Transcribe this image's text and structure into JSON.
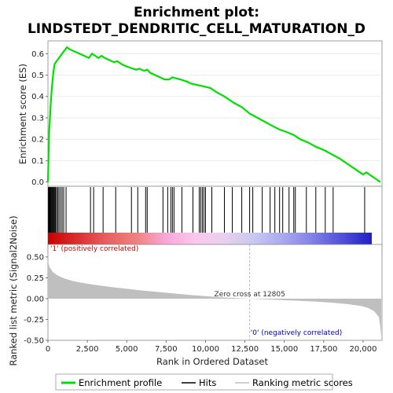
{
  "title_line1": "Enrichment plot:",
  "title_line2": "LINDSTEDT_DENDRITIC_CELL_MATURATION_D",
  "es_ylabel": "Enrichment score (ES)",
  "metric_ylabel": "Ranked list metric (Signal2Noise)",
  "xlabel": "Rank in Ordered Dataset",
  "zero_cross_text": "Zero cross at 12805",
  "pos_label": "'1' (positively correlated)",
  "neg_label": "'0' (negatively correlated)",
  "legend": {
    "enrichment_profile": "Enrichment profile",
    "hits": "Hits",
    "ranking_metric": "Ranking metric scores"
  },
  "colors": {
    "profile": "#00e000",
    "hits": "#000000",
    "metric_fill": "#bfbfbf",
    "pos_text": "#cc0000",
    "neg_text": "#0000bb"
  },
  "chart_data": {
    "type": "line",
    "xlim": [
      0,
      21200
    ],
    "x_ticks": [
      0,
      2500,
      5000,
      7500,
      10000,
      12500,
      15000,
      17500,
      20000
    ],
    "x_tick_labels": [
      "0",
      "2,500",
      "5,000",
      "7,500",
      "10,000",
      "12,500",
      "15,000",
      "17,500",
      "20,000"
    ],
    "es": {
      "ylim": [
        -0.02,
        0.66
      ],
      "y_ticks": [
        0.0,
        0.1,
        0.2,
        0.3,
        0.4,
        0.5,
        0.6
      ],
      "y_tick_labels": [
        "0.0",
        "0.1",
        "0.2",
        "0.3",
        "0.4",
        "0.5",
        "0.6"
      ],
      "x": [
        0,
        40,
        80,
        130,
        180,
        240,
        300,
        360,
        420,
        500,
        600,
        700,
        800,
        900,
        1000,
        1100,
        1200,
        1400,
        1700,
        2000,
        2300,
        2600,
        2700,
        2800,
        3000,
        3200,
        3400,
        3600,
        3900,
        4200,
        4400,
        4700,
        5000,
        5200,
        5400,
        5600,
        5800,
        6100,
        6300,
        6500,
        6800,
        7100,
        7400,
        7700,
        7900,
        8100,
        8400,
        8800,
        9100,
        9400,
        9700,
        10000,
        10300,
        10700,
        11200,
        11800,
        12300,
        12800,
        13300,
        13800,
        14300,
        14700,
        15100,
        15600,
        16000,
        16500,
        17000,
        17500,
        18000,
        18500,
        19000,
        19500,
        20000,
        20200,
        20500,
        20800,
        21100
      ],
      "y": [
        0.0,
        0.12,
        0.24,
        0.3,
        0.37,
        0.43,
        0.48,
        0.52,
        0.55,
        0.56,
        0.57,
        0.58,
        0.59,
        0.6,
        0.61,
        0.62,
        0.63,
        0.62,
        0.61,
        0.6,
        0.59,
        0.58,
        0.59,
        0.6,
        0.59,
        0.58,
        0.59,
        0.58,
        0.57,
        0.56,
        0.565,
        0.55,
        0.54,
        0.535,
        0.53,
        0.525,
        0.53,
        0.52,
        0.525,
        0.51,
        0.5,
        0.49,
        0.48,
        0.48,
        0.49,
        0.485,
        0.48,
        0.47,
        0.46,
        0.455,
        0.45,
        0.445,
        0.44,
        0.42,
        0.4,
        0.37,
        0.35,
        0.32,
        0.3,
        0.28,
        0.26,
        0.245,
        0.235,
        0.22,
        0.2,
        0.185,
        0.165,
        0.15,
        0.13,
        0.11,
        0.085,
        0.06,
        0.035,
        0.045,
        0.03,
        0.015,
        0.0
      ]
    },
    "hits": [
      30,
      60,
      100,
      140,
      180,
      230,
      270,
      320,
      370,
      430,
      480,
      540,
      620,
      700,
      800,
      900,
      1000,
      1150,
      2700,
      2900,
      3500,
      4300,
      5300,
      5700,
      6200,
      6300,
      7300,
      7600,
      7800,
      7900,
      8000,
      8500,
      9200,
      9600,
      9700,
      9800,
      9900,
      10000,
      10400,
      11200,
      11700,
      12300,
      12800,
      13000,
      13600,
      14100,
      14400,
      14700,
      14900,
      15300,
      15600,
      15700,
      16400,
      17000,
      17600,
      18100,
      20100
    ],
    "metric": {
      "ylim": [
        -0.5,
        0.65
      ],
      "y_ticks": [
        -0.5,
        -0.25,
        0.0,
        0.25,
        0.5
      ],
      "y_tick_labels": [
        "-0.50",
        "-0.25",
        "0.00",
        "0.25",
        "0.50"
      ],
      "x": [
        0,
        100,
        300,
        600,
        1000,
        1500,
        2000,
        3000,
        4000,
        5000,
        6000,
        7000,
        8000,
        9000,
        10000,
        11000,
        12000,
        12805,
        14000,
        15000,
        16000,
        17000,
        18000,
        19000,
        19800,
        20300,
        20700,
        21000,
        21100,
        21150
      ],
      "y": [
        0.45,
        0.38,
        0.32,
        0.28,
        0.245,
        0.215,
        0.195,
        0.165,
        0.14,
        0.118,
        0.098,
        0.08,
        0.062,
        0.045,
        0.03,
        0.017,
        0.006,
        0.0,
        -0.01,
        -0.018,
        -0.026,
        -0.036,
        -0.048,
        -0.065,
        -0.085,
        -0.11,
        -0.15,
        -0.22,
        -0.35,
        -0.46
      ]
    },
    "zero_cross": 12805,
    "heat_stops": [
      "#c80000",
      "#d83030",
      "#e86060",
      "#f08080",
      "#f8a8d8",
      "#fac8ec",
      "#e8d0f0",
      "#c8c8f0",
      "#a8a8f0",
      "#8080e8",
      "#5050d8",
      "#2020c0"
    ]
  }
}
